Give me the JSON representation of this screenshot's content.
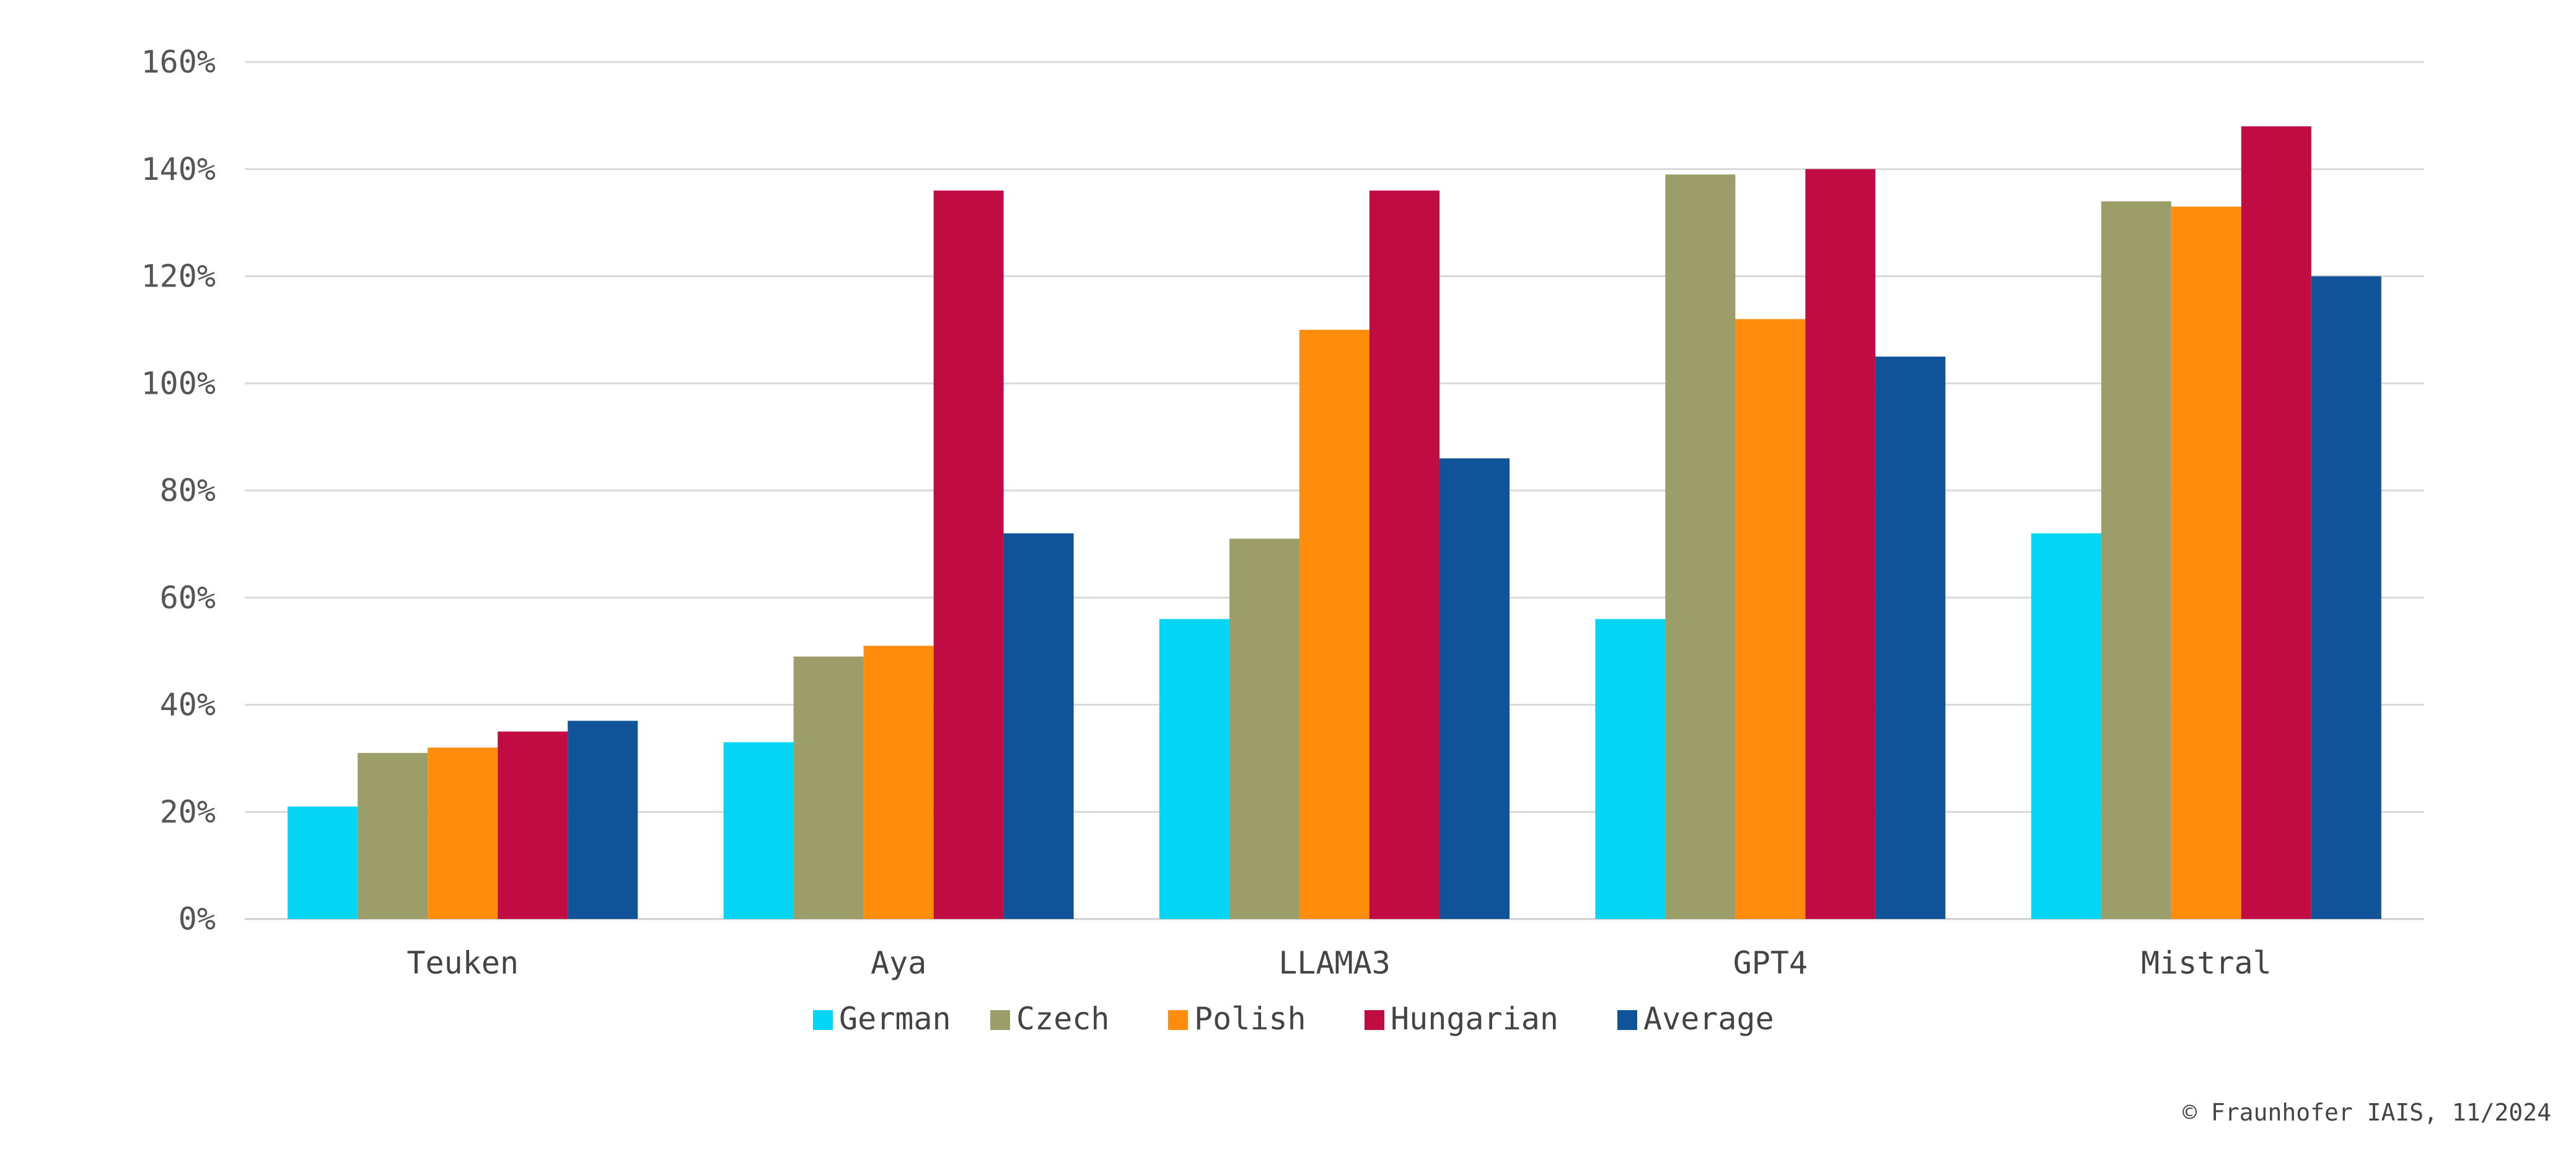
{
  "chart_data": {
    "type": "bar",
    "categories": [
      "Teuken",
      "Aya",
      "LLAMA3",
      "GPT4",
      "Mistral"
    ],
    "series": [
      {
        "name": "German",
        "color": "#06D6F5",
        "values": [
          21,
          33,
          56,
          56,
          72
        ]
      },
      {
        "name": "Czech",
        "color": "#9C9E6A",
        "values": [
          31,
          49,
          71,
          139,
          134
        ]
      },
      {
        "name": "Polish",
        "color": "#FF8C0B",
        "values": [
          32,
          51,
          110,
          112,
          133
        ]
      },
      {
        "name": "Hungarian",
        "color": "#C10C43",
        "values": [
          35,
          136,
          136,
          140,
          148
        ]
      },
      {
        "name": "Average",
        "color": "#115398",
        "values": [
          37,
          72,
          86,
          105,
          120
        ]
      }
    ],
    "yticks": [
      "0%",
      "20%",
      "40%",
      "60%",
      "80%",
      "100%",
      "120%",
      "140%",
      "160%"
    ],
    "ylim": [
      0,
      160
    ],
    "grid": true,
    "legend_position": "bottom"
  },
  "credit": "© Fraunhofer IAIS, 11/2024"
}
